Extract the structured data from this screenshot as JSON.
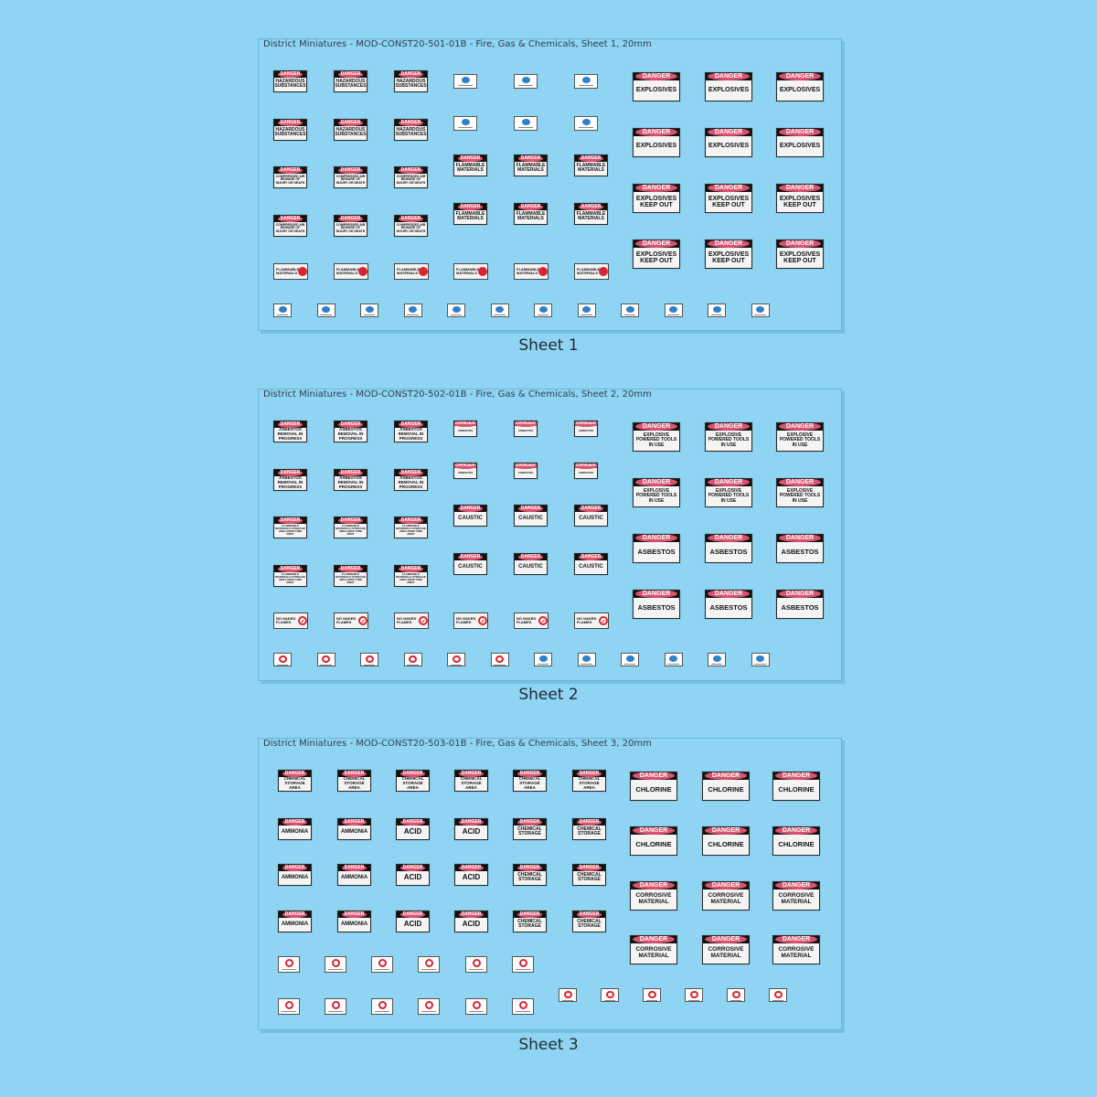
{
  "sheets": [
    {
      "title": "District Miniatures - MOD-CONST20-501-01B - Fire, Gas & Chemicals, Sheet 1, 20mm",
      "caption": "Sheet 1",
      "small_signs": [
        {
          "header": "DANGER",
          "text": "HAZARDOUS SUBSTANCES"
        },
        {
          "header": "DANGER",
          "text": "COMPRESSED AIR BEWARE OF INJURY OR DEATH"
        },
        {
          "header": "DANGER",
          "text": "FLAMMABLE MATERIALS"
        }
      ],
      "large_signs": [
        {
          "header": "DANGER",
          "text": "EXPLOSIVES"
        },
        {
          "header": "DANGER",
          "text": "EXPLOSIVES KEEP OUT"
        }
      ],
      "round_sign_text": "FLAMMABLE MATERIALS"
    },
    {
      "title": "District Miniatures - MOD-CONST20-502-01B - Fire, Gas & Chemicals, Sheet 2, 20mm",
      "caption": "Sheet 2",
      "small_signs": [
        {
          "header": "DANGER",
          "text": "ASBESTOS REMOVAL IN PROGRESS"
        },
        {
          "header": "DANGER",
          "text": "FLAMMABLE MATERIALS STORAGE AREA KEEP FIRE AWAY"
        },
        {
          "header": "DANGER",
          "text": "CAUSTIC"
        },
        {
          "header": "DANGER",
          "text": "ASBESTOS"
        }
      ],
      "large_signs": [
        {
          "header": "DANGER",
          "text": "EXPLOSIVE POWERED TOOLS IN USE"
        },
        {
          "header": "DANGER",
          "text": "ASBESTOS"
        }
      ],
      "round_sign_text": "NO NAKED FLAMES"
    },
    {
      "title": "District Miniatures - MOD-CONST20-503-01B - Fire, Gas & Chemicals, Sheet 3, 20mm",
      "caption": "Sheet 3",
      "small_signs": [
        {
          "header": "DANGER",
          "text": "CHEMICAL STORAGE AREA"
        },
        {
          "header": "DANGER",
          "text": "AMMONIA"
        },
        {
          "header": "DANGER",
          "text": "ACID"
        },
        {
          "header": "DANGER",
          "text": "CHEMICAL STORAGE"
        }
      ],
      "large_signs": [
        {
          "header": "DANGER",
          "text": "CHLORINE"
        },
        {
          "header": "DANGER",
          "text": "CORROSIVE MATERIAL"
        }
      ]
    }
  ]
}
